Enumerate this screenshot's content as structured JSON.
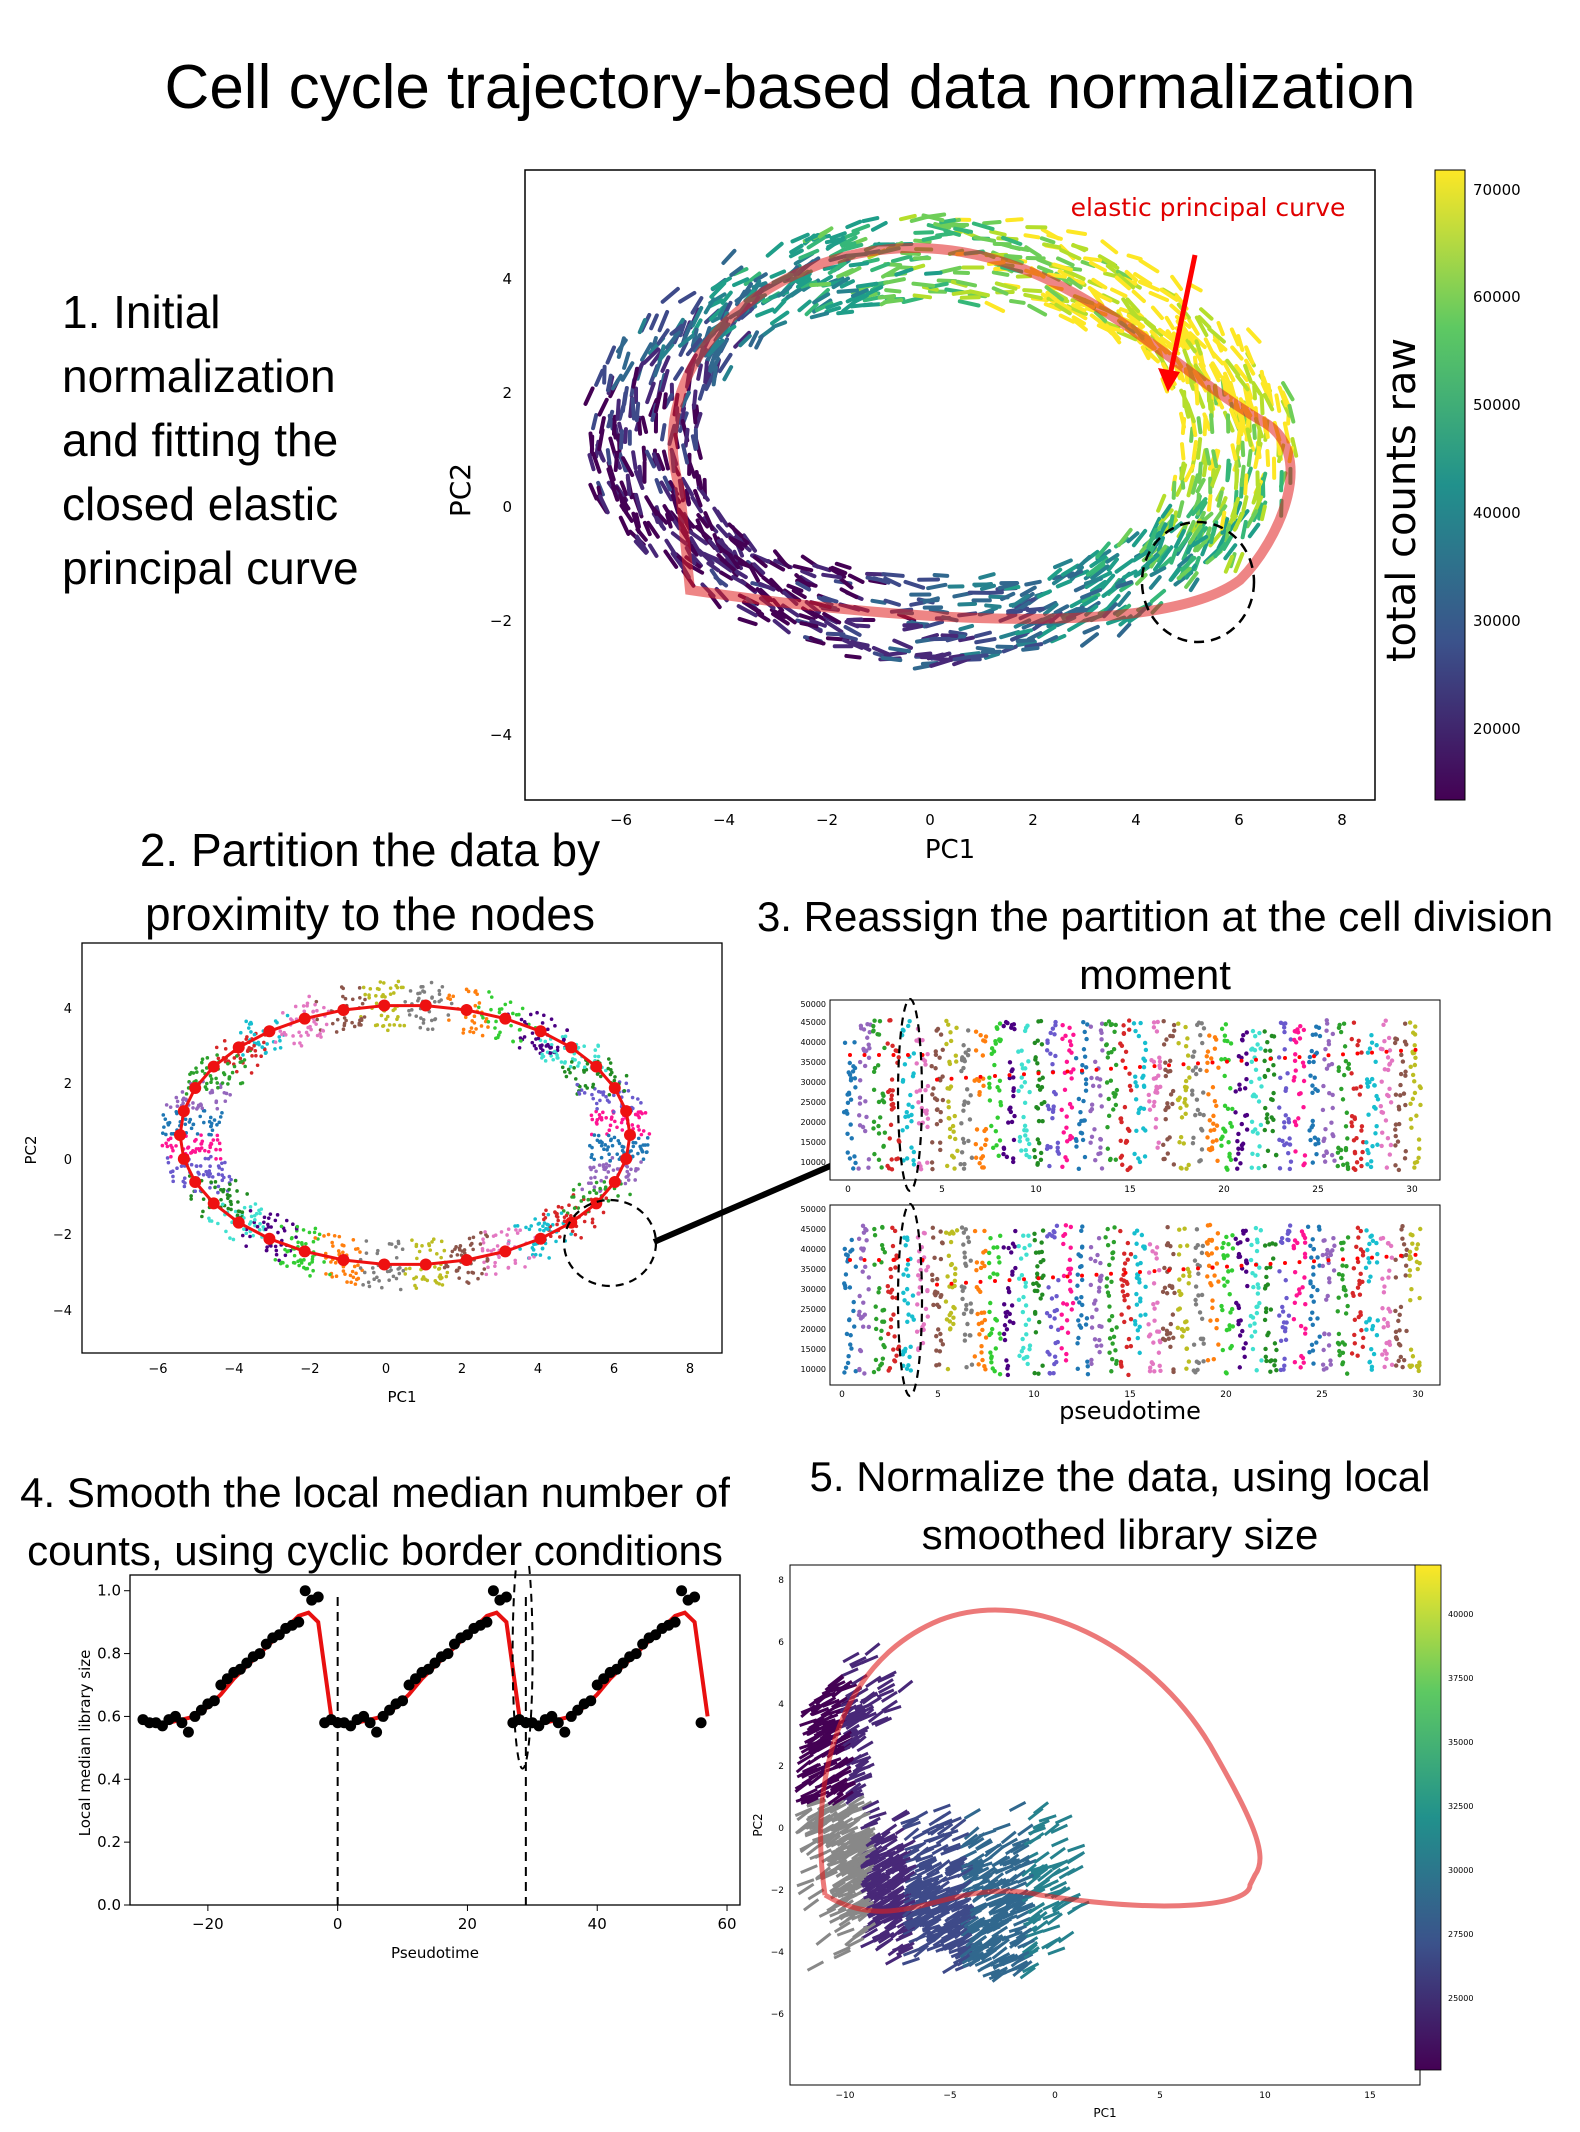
{
  "title": "Cell cycle trajectory-based data normalization",
  "steps": {
    "s1": [
      "1. Initial",
      "normalization",
      "and fitting the",
      "closed elastic",
      "principal curve"
    ],
    "s2": [
      "2. Partition the data by",
      "proximity to the nodes"
    ],
    "s3": [
      "3. Reassign the partition at the cell division",
      "moment"
    ],
    "s4": [
      "4. Smooth the local median number of",
      "counts, using cyclic border conditions"
    ],
    "s5": [
      "5. Normalize the data, using local",
      "smoothed library size"
    ]
  },
  "panel1": {
    "xlabel": "PC1",
    "ylabel": "PC2",
    "annotation": "elastic principal curve",
    "colorbar_label": "total counts raw",
    "xticks": [
      "−6",
      "−4",
      "−2",
      "0",
      "2",
      "4",
      "6",
      "8"
    ],
    "yticks": [
      "4",
      "2",
      "0",
      "−2",
      "−4"
    ],
    "colorbar_ticks": [
      "70000",
      "60000",
      "50000",
      "40000",
      "30000",
      "20000"
    ]
  },
  "panel2": {
    "xlabel": "PC1",
    "ylabel": "PC2",
    "xticks": [
      "−6",
      "−4",
      "−2",
      "0",
      "2",
      "4",
      "6",
      "8"
    ],
    "yticks": [
      "4",
      "2",
      "0",
      "−2",
      "−4"
    ]
  },
  "panel3": {
    "xlabel": "pseudotime",
    "xticks": [
      "0",
      "5",
      "10",
      "15",
      "20",
      "25",
      "30"
    ],
    "yticks_top": [
      "50000",
      "45000",
      "40000",
      "35000",
      "30000",
      "25000",
      "20000",
      "15000",
      "10000"
    ],
    "yticks_bottom": [
      "50000",
      "45000",
      "40000",
      "35000",
      "30000",
      "25000",
      "20000",
      "15000",
      "10000"
    ]
  },
  "panel5": {
    "xlabel": "PC1",
    "ylabel": "PC2",
    "xticks": [
      "−10",
      "−5",
      "0",
      "5",
      "10",
      "15"
    ],
    "yticks": [
      "8",
      "6",
      "4",
      "2",
      "0",
      "−2",
      "−4",
      "−6"
    ],
    "colorbar_ticks": [
      "40000",
      "37500",
      "35000",
      "32500",
      "30000",
      "27500",
      "25000"
    ]
  },
  "chart_data": [
    {
      "type": "line",
      "xlabel": "Pseudotime",
      "ylabel": "Local median library size",
      "xlim": [
        -32,
        62
      ],
      "ylim": [
        0.0,
        1.05
      ],
      "xticks": [
        "−20",
        "0",
        "20",
        "40",
        "60"
      ],
      "yticks": [
        "0.0",
        "0.2",
        "0.4",
        "0.6",
        "0.8",
        "1.0"
      ],
      "period": 29,
      "boundaries": [
        0,
        29
      ],
      "series": [
        {
          "style": "red-line",
          "x": [
            -30,
            -28,
            -26,
            -24,
            -22,
            -20,
            -18,
            -16,
            -14,
            -12,
            -10,
            -8,
            -6,
            -4.5,
            -3,
            -2,
            -1
          ],
          "y": [
            0.58,
            0.57,
            0.58,
            0.59,
            0.6,
            0.63,
            0.67,
            0.72,
            0.76,
            0.8,
            0.84,
            0.88,
            0.92,
            0.93,
            0.9,
            0.75,
            0.6
          ]
        },
        {
          "style": "black-dots",
          "x": [
            -30,
            -29,
            -28,
            -27,
            -26,
            -25,
            -24,
            -23,
            -22,
            -21,
            -20,
            -19,
            -18,
            -17,
            -16,
            -15,
            -14,
            -13,
            -12,
            -11,
            -10,
            -9,
            -8,
            -7,
            -6,
            -5,
            -4,
            -3,
            -2
          ],
          "y": [
            0.59,
            0.58,
            0.58,
            0.57,
            0.59,
            0.6,
            0.58,
            0.55,
            0.6,
            0.62,
            0.64,
            0.65,
            0.7,
            0.72,
            0.74,
            0.75,
            0.77,
            0.79,
            0.8,
            0.83,
            0.85,
            0.86,
            0.88,
            0.89,
            0.9,
            1.0,
            0.97,
            0.98,
            0.58
          ]
        }
      ]
    }
  ]
}
